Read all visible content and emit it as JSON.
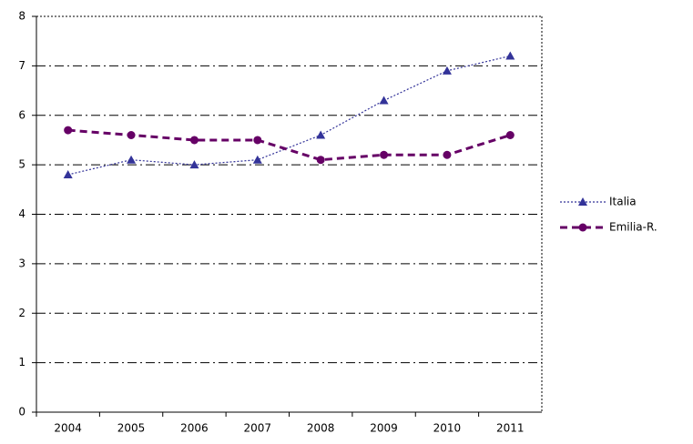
{
  "chart_data": {
    "type": "line",
    "categories": [
      "2004",
      "2005",
      "2006",
      "2007",
      "2008",
      "2009",
      "2010",
      "2011"
    ],
    "series": [
      {
        "name": "Italia",
        "color": "#333399",
        "marker": "triangle",
        "line_style": "dotted",
        "values": [
          4.8,
          5.1,
          5.0,
          5.1,
          5.6,
          6.3,
          6.9,
          7.2
        ]
      },
      {
        "name": "Emilia-R.",
        "color": "#660066",
        "marker": "circle",
        "line_style": "dashed",
        "values": [
          5.7,
          5.6,
          5.5,
          5.5,
          5.1,
          5.2,
          5.2,
          5.6
        ]
      }
    ],
    "ylim": [
      0,
      8
    ],
    "yticks": [
      0,
      1,
      2,
      3,
      4,
      5,
      6,
      7,
      8
    ],
    "grid": true,
    "legend": "right"
  }
}
